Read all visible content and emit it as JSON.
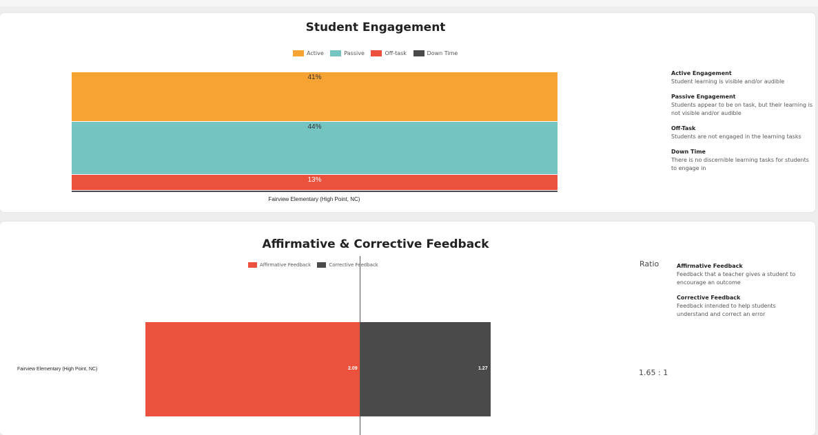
{
  "colors": {
    "active": "#f7a333",
    "passive": "#74c4c1",
    "off_task": "#eb513c",
    "down_time": "#4a4a4a",
    "affirmative": "#eb513c",
    "corrective": "#4a4a4a"
  },
  "engagement": {
    "title": "Student Engagement",
    "legend": [
      {
        "label": "Active",
        "color": "#f7a333"
      },
      {
        "label": "Passive",
        "color": "#74c4c1"
      },
      {
        "label": "Off-task",
        "color": "#eb513c"
      },
      {
        "label": "Down Time",
        "color": "#4a4a4a"
      }
    ],
    "definitions": [
      {
        "term": "Active Engagement",
        "desc": "Student learning is visible and/or audible"
      },
      {
        "term": "Passive Engagement",
        "desc": "Students appear to be on task, but their learning is not visible and/or audible"
      },
      {
        "term": "Off-Task",
        "desc": "Students are not engaged in the learning tasks"
      },
      {
        "term": "Down Time",
        "desc": "There is no discernible learning tasks for students to engage in"
      }
    ]
  },
  "feedback": {
    "title": "Affirmative & Corrective Feedback",
    "legend": [
      {
        "label": "Affirmative Feedback",
        "color": "#eb513c"
      },
      {
        "label": "Corrective Feedback",
        "color": "#4a4a4a"
      }
    ],
    "ratio_label": "Ratio",
    "ratio_value": "1.65 : 1",
    "definitions": [
      {
        "term": "Affirmative Feedback",
        "desc": "Feedback that a teacher gives a student to encourage an outcome"
      },
      {
        "term": "Corrective Feedback",
        "desc": "Feedback intended to help students understand and correct an error"
      }
    ]
  },
  "chart_data": [
    {
      "type": "bar",
      "stacked": true,
      "percent": true,
      "title": "Student Engagement",
      "categories": [
        "Fairview Elementary (High Point, NC)"
      ],
      "series": [
        {
          "name": "Active",
          "values": [
            41
          ],
          "label": "41%"
        },
        {
          "name": "Passive",
          "values": [
            44
          ],
          "label": "44%"
        },
        {
          "name": "Off-task",
          "values": [
            13
          ],
          "label": "13%"
        },
        {
          "name": "Down Time",
          "values": [
            1
          ],
          "label": ""
        }
      ],
      "legend": "top"
    },
    {
      "type": "bar",
      "orientation": "horizontal",
      "diverging": true,
      "title": "Affirmative & Corrective Feedback",
      "categories": [
        "Fairview Elementary (High Point, NC)"
      ],
      "series": [
        {
          "name": "Affirmative Feedback",
          "values": [
            2.09
          ],
          "label": "2.09"
        },
        {
          "name": "Corrective Feedback",
          "values": [
            1.27
          ],
          "label": "1.27"
        }
      ],
      "legend": "top"
    }
  ]
}
